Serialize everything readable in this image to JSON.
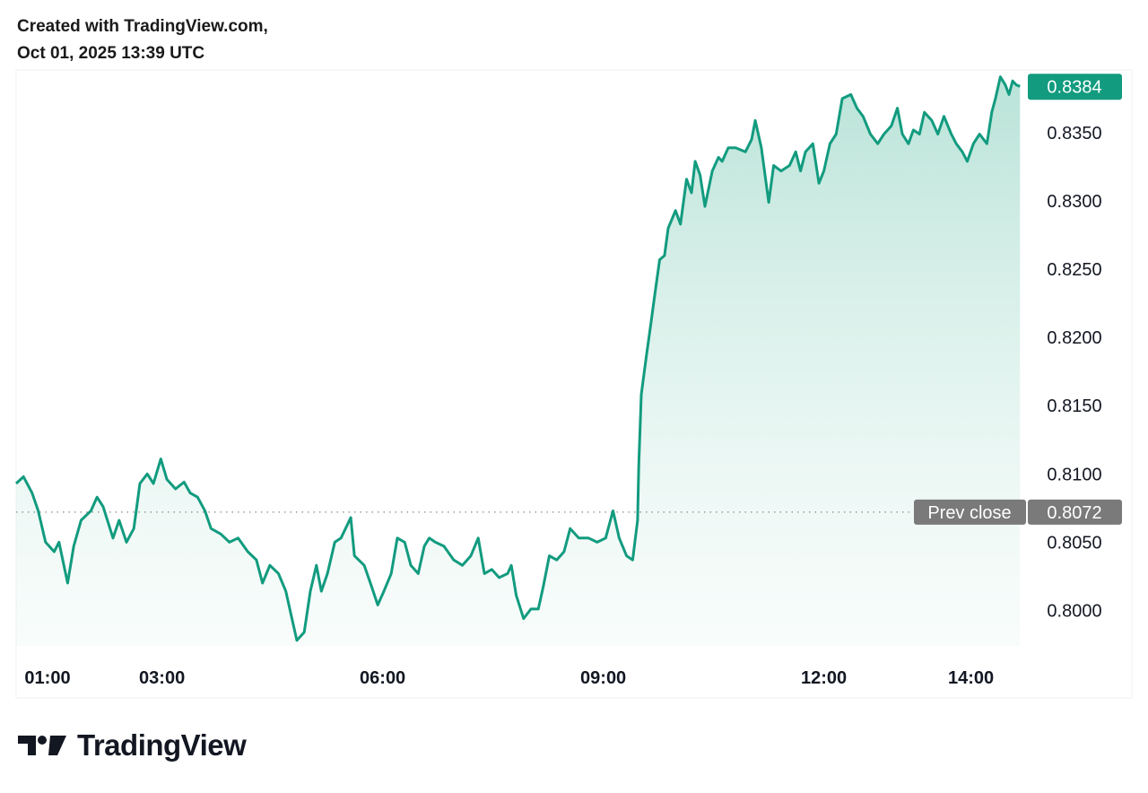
{
  "header": {
    "line1": "Created with TradingView.com,",
    "line2": "Oct 01, 2025 13:39 UTC"
  },
  "logo": {
    "text": "TradingView"
  },
  "colors": {
    "line": "#129b7f",
    "last_price_badge": "#129b7f",
    "prev_close_badge": "#7a7a7a",
    "fill_top": "#b9e3d8"
  },
  "chart_data": {
    "type": "area",
    "title": "",
    "xlabel": "",
    "ylabel": "",
    "xlim": [
      "01:01",
      "14:42"
    ],
    "ylim": [
      0.7974,
      0.8396
    ],
    "grid": false,
    "x_ticks": [
      "01:00",
      "03:00",
      "06:00",
      "09:00",
      "12:00",
      "14:00"
    ],
    "y_ticks": [
      "0.8000",
      "0.8050",
      "0.8100",
      "0.8150",
      "0.8200",
      "0.8250",
      "0.8300",
      "0.8350"
    ],
    "last_price": {
      "label": "0.8384",
      "value": 0.8384
    },
    "prev_close": {
      "label": "Prev close",
      "value_label": "0.8072",
      "value": 0.8072
    },
    "series": [
      {
        "x": [
          "01:01",
          "01:07",
          "01:14",
          "01:19",
          "01:25",
          "01:32",
          "01:36",
          "01:43",
          "01:48",
          "01:54",
          "02:02",
          "02:07",
          "02:12",
          "02:20",
          "02:25",
          "02:31",
          "02:37",
          "02:42",
          "02:48",
          "02:53",
          "02:59",
          "03:04",
          "03:11",
          "03:18",
          "03:23",
          "03:29",
          "03:35",
          "03:40",
          "03:48",
          "03:55",
          "04:02",
          "04:10",
          "04:17",
          "04:22",
          "04:28",
          "04:35",
          "04:41",
          "04:46",
          "04:50",
          "04:56",
          "05:01",
          "05:06",
          "05:10",
          "05:15",
          "05:21",
          "05:26",
          "05:34",
          "05:37",
          "05:45",
          "05:50",
          "05:56",
          "06:01",
          "06:07",
          "06:12",
          "06:18",
          "06:23",
          "06:29",
          "06:34",
          "06:38",
          "06:43",
          "06:50",
          "06:58",
          "07:05",
          "07:12",
          "07:18",
          "07:23",
          "07:29",
          "07:35",
          "07:42",
          "07:45",
          "07:49",
          "07:55",
          "08:01",
          "08:07",
          "08:11",
          "08:16",
          "08:22",
          "08:28",
          "08:33",
          "08:40",
          "08:48",
          "08:55",
          "09:02",
          "09:08",
          "09:13",
          "09:19",
          "09:24",
          "09:28",
          "09:29",
          "09:31",
          "09:35",
          "09:39",
          "09:42",
          "09:46",
          "09:50",
          "09:53",
          "09:59",
          "10:03",
          "10:08",
          "10:12",
          "10:15",
          "10:19",
          "10:23",
          "10:29",
          "10:34",
          "10:37",
          "10:42",
          "10:48",
          "10:56",
          "11:01",
          "11:04",
          "11:09",
          "11:12",
          "11:15",
          "11:19",
          "11:25",
          "11:32",
          "11:37",
          "11:41",
          "11:45",
          "11:51",
          "11:56",
          "12:00",
          "12:05",
          "12:10",
          "12:15",
          "12:22",
          "12:27",
          "12:32",
          "12:38",
          "12:44",
          "12:49",
          "12:55",
          "13:00",
          "13:04",
          "13:09",
          "13:13",
          "13:18",
          "13:22",
          "13:28",
          "13:33",
          "13:38",
          "13:44",
          "13:48",
          "13:53",
          "13:57",
          "14:02",
          "14:07",
          "14:13",
          "14:17",
          "14:20",
          "14:24",
          "14:28",
          "14:31",
          "14:34",
          "14:37",
          "14:40"
        ],
        "y": [
          0.8093,
          0.8098,
          0.8086,
          0.8073,
          0.805,
          0.8043,
          0.805,
          0.802,
          0.8047,
          0.8066,
          0.8073,
          0.8083,
          0.8076,
          0.8053,
          0.8066,
          0.805,
          0.806,
          0.8093,
          0.81,
          0.8093,
          0.8111,
          0.8096,
          0.8089,
          0.8094,
          0.8086,
          0.8083,
          0.8073,
          0.806,
          0.8056,
          0.805,
          0.8053,
          0.8043,
          0.8037,
          0.802,
          0.8033,
          0.8027,
          0.8014,
          0.7994,
          0.7978,
          0.7984,
          0.8014,
          0.8033,
          0.8014,
          0.8027,
          0.805,
          0.8053,
          0.8068,
          0.804,
          0.8033,
          0.802,
          0.8004,
          0.8014,
          0.8027,
          0.8053,
          0.805,
          0.8033,
          0.8027,
          0.8047,
          0.8053,
          0.805,
          0.8047,
          0.8037,
          0.8033,
          0.804,
          0.8053,
          0.8027,
          0.803,
          0.8024,
          0.8027,
          0.8033,
          0.8011,
          0.7994,
          0.8001,
          0.8001,
          0.8017,
          0.804,
          0.8037,
          0.8043,
          0.806,
          0.8053,
          0.8053,
          0.805,
          0.8053,
          0.8073,
          0.8053,
          0.804,
          0.8037,
          0.8066,
          0.8106,
          0.8158,
          0.8185,
          0.8211,
          0.8231,
          0.8257,
          0.826,
          0.828,
          0.8293,
          0.8283,
          0.8316,
          0.8306,
          0.8329,
          0.8319,
          0.8296,
          0.8322,
          0.8332,
          0.8329,
          0.8339,
          0.8339,
          0.8336,
          0.8345,
          0.8359,
          0.8339,
          0.8319,
          0.8299,
          0.8326,
          0.8322,
          0.8326,
          0.8336,
          0.8322,
          0.8336,
          0.8342,
          0.8313,
          0.8322,
          0.8342,
          0.8349,
          0.8375,
          0.8378,
          0.8368,
          0.8362,
          0.8349,
          0.8342,
          0.8349,
          0.8355,
          0.8368,
          0.8349,
          0.8342,
          0.8352,
          0.8349,
          0.8365,
          0.8359,
          0.8349,
          0.8362,
          0.8349,
          0.8342,
          0.8336,
          0.8329,
          0.8342,
          0.8349,
          0.8342,
          0.8365,
          0.8375,
          0.8391,
          0.8385,
          0.8378,
          0.8388,
          0.8385,
          0.8384
        ]
      }
    ]
  }
}
